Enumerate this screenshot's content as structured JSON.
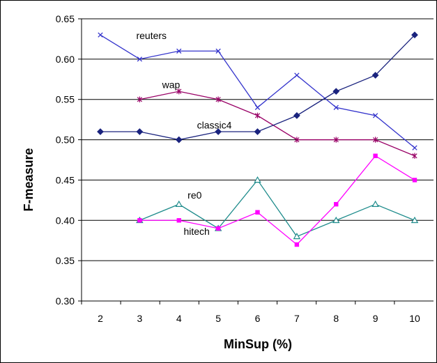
{
  "chart_data": {
    "type": "line",
    "title": "",
    "xlabel": "MinSup (%)",
    "ylabel": "F-measure",
    "x": [
      2,
      3,
      4,
      5,
      6,
      7,
      8,
      9,
      10
    ],
    "xlim": [
      2,
      10
    ],
    "ylim": [
      0.3,
      0.65
    ],
    "yticks": [
      "0.30",
      "0.35",
      "0.40",
      "0.45",
      "0.50",
      "0.55",
      "0.60",
      "0.65"
    ],
    "xticks": [
      "2",
      "3",
      "4",
      "5",
      "6",
      "7",
      "8",
      "9",
      "10"
    ],
    "grid": "horizontal",
    "legend": "inline labels",
    "series": [
      {
        "name": "reuters",
        "color": "#3333cc",
        "marker": "x",
        "values": [
          0.63,
          0.6,
          0.61,
          0.61,
          0.54,
          0.58,
          0.54,
          0.53,
          0.49
        ]
      },
      {
        "name": "wap",
        "color": "#990066",
        "marker": "star",
        "values": [
          null,
          0.55,
          0.56,
          0.55,
          0.53,
          0.5,
          0.5,
          0.5,
          0.48
        ]
      },
      {
        "name": "classic4",
        "color": "#1a237e",
        "marker": "diamond",
        "values": [
          0.51,
          0.51,
          0.5,
          0.51,
          0.51,
          0.53,
          0.56,
          0.58,
          0.63
        ]
      },
      {
        "name": "re0",
        "color": "#1f8c8c",
        "marker": "triangle",
        "values": [
          null,
          0.4,
          0.42,
          0.39,
          0.45,
          0.38,
          0.4,
          0.42,
          0.4
        ]
      },
      {
        "name": "hitech",
        "color": "#ff00ff",
        "marker": "square",
        "values": [
          null,
          0.4,
          0.4,
          0.39,
          0.41,
          0.37,
          0.42,
          0.48,
          0.45
        ]
      }
    ]
  }
}
